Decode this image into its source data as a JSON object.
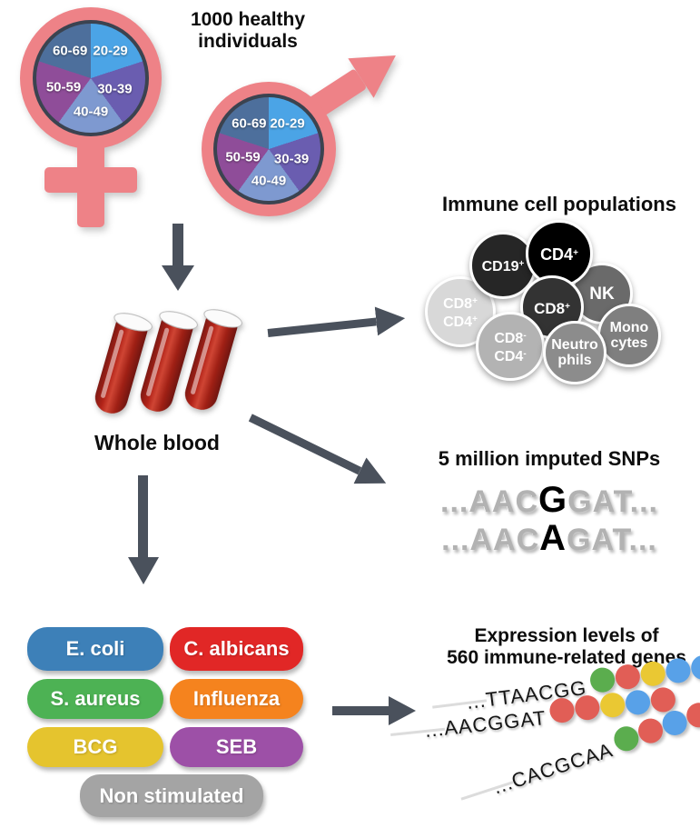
{
  "header": {
    "line1": "1000 healthy",
    "line2": "individuals"
  },
  "demographics": {
    "age_groups": [
      "20-29",
      "30-39",
      "40-49",
      "50-59",
      "60-69"
    ],
    "pie_colors": [
      "#4ba4e6",
      "#6a5db0",
      "#7e99d0",
      "#8f4d99",
      "#4d6f9c"
    ],
    "symbol_color": "#ee8287"
  },
  "whole_blood": {
    "label": "Whole blood"
  },
  "immune": {
    "title": "Immune cell populations",
    "cells": [
      {
        "line1": "CD8",
        "sup1": "+",
        "line2": "CD4",
        "sup2": "+",
        "color": "#d8d8d8"
      },
      {
        "line1": "CD19",
        "sup1": "+",
        "color": "#262626"
      },
      {
        "line1": "NK",
        "color": "#6a6a6a"
      },
      {
        "line1": "CD4",
        "sup1": "+",
        "color": "#000000"
      },
      {
        "line1": "Mono",
        "line2": "cytes",
        "color": "#7f7f7f"
      },
      {
        "line1": "CD8",
        "sup1": "+",
        "color": "#333333"
      },
      {
        "line1": "CD8",
        "sup1": "-",
        "line2": "CD4",
        "sup2": "-",
        "color": "#b3b3b3"
      },
      {
        "line1": "Neutro",
        "line2": "phils",
        "color": "#8c8c8c"
      }
    ]
  },
  "snps": {
    "title": "5 million imputed SNPs",
    "sequences": [
      {
        "pre": "...AAC",
        "variant": "G",
        "post": "GAT..."
      },
      {
        "pre": "...AAC",
        "variant": "A",
        "post": "GAT..."
      }
    ]
  },
  "stimuli": {
    "items": [
      {
        "label": "E. coli",
        "color": "#3d80b8"
      },
      {
        "label": "C. albicans",
        "color": "#e12726"
      },
      {
        "label": "S. aureus",
        "color": "#4db254"
      },
      {
        "label": "Influenza",
        "color": "#f5831e"
      },
      {
        "label": "BCG",
        "color": "#e5c42e"
      },
      {
        "label": "SEB",
        "color": "#9d50a7"
      },
      {
        "label": "Non stimulated",
        "color": "#a4a4a4"
      }
    ]
  },
  "expression": {
    "title_line1": "Expression levels of",
    "title_line2": "560 immune-related genes",
    "dot_colors": {
      "green": "#5bad4e",
      "red": "#e15e56",
      "yellow": "#eac833",
      "blue": "#58a1e8"
    },
    "rows": [
      {
        "seq": "...TTAACGG",
        "dots": [
          "green",
          "red",
          "yellow",
          "blue",
          "blue"
        ]
      },
      {
        "seq": "...AACGGAT",
        "dots": [
          "red",
          "red",
          "yellow",
          "blue",
          "red"
        ]
      },
      {
        "seq": "...CACGCAA",
        "dots": [
          "green",
          "red",
          "blue",
          "red",
          "red"
        ]
      }
    ]
  },
  "arrow_color": "#4a515c"
}
